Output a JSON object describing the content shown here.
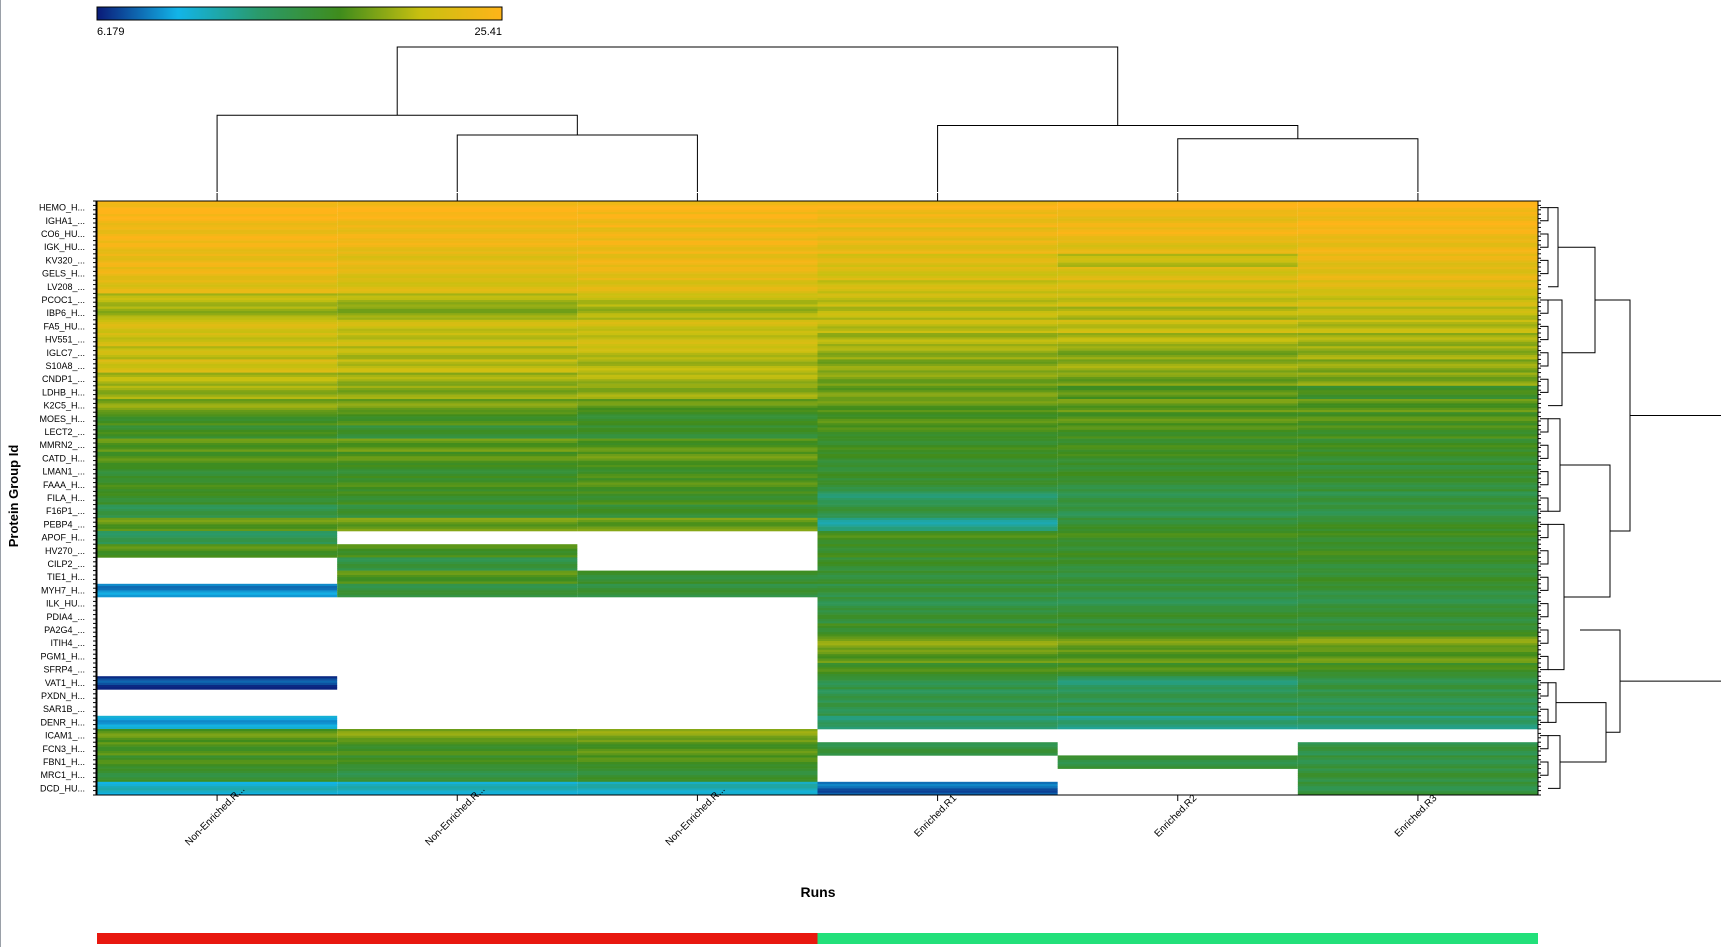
{
  "chart_data": {
    "type": "heatmap",
    "title": "",
    "xlabel": "Runs",
    "ylabel": "Protein Group Id",
    "color_scale": {
      "min": 6.179,
      "max": 25.41,
      "min_label": "6.179",
      "max_label": "25.41",
      "stops": [
        "#0a1a78",
        "#12b4e8",
        "#2a9a6a",
        "#3f8c1c",
        "#c9c010",
        "#ffb419"
      ]
    },
    "columns": [
      "Non-Enriched.R...",
      "Non-Enriched.R...",
      "Non-Enriched.R...",
      "Enriched.R1",
      "Enriched.R2",
      "Enriched.R3"
    ],
    "column_groups": [
      {
        "name": "Non-Enriched",
        "color": "#e8180f",
        "columns": [
          0,
          1,
          2
        ]
      },
      {
        "name": "Enriched",
        "color": "#22e07a",
        "columns": [
          3,
          4,
          5
        ]
      }
    ],
    "row_labels": [
      "HEMO_H...",
      "IGHA1_...",
      "CO6_HU...",
      "IGK_HU...",
      "KV320_...",
      "GELS_H...",
      "LV208_...",
      "PCOC1_...",
      "IBP6_H...",
      "FA5_HU...",
      "HV551_...",
      "IGLC7_...",
      "S10A8_...",
      "CNDP1_...",
      "LDHB_H...",
      "K2C5_H...",
      "MOES_H...",
      "LECT2_...",
      "MMRN2_...",
      "CATD_H...",
      "LMAN1_...",
      "FAAA_H...",
      "FILA_H...",
      "F16P1_...",
      "PEBP4_...",
      "APOF_H...",
      "HV270_...",
      "CILP2_...",
      "TIE1_H...",
      "MYH7_H...",
      "ILK_HU...",
      "PDIA4_...",
      "PA2G4_...",
      "ITIH4_...",
      "PGM1_H...",
      "SFRP4_...",
      "VAT1_H...",
      "PXDN_H...",
      "SAR1B_...",
      "DENR_H...",
      "ICAM1_...",
      "FCN3_H...",
      "FBN1_H...",
      "MRC1_H...",
      "DCD_HU..."
    ],
    "values": [
      [
        25.0,
        25.0,
        24.8,
        24.6,
        24.9,
        25.1
      ],
      [
        24.6,
        24.5,
        24.7,
        24.2,
        24.0,
        24.6
      ],
      [
        24.4,
        24.2,
        24.1,
        23.9,
        24.3,
        24.4
      ],
      [
        24.2,
        24.0,
        24.3,
        23.6,
        23.2,
        24.0
      ],
      [
        24.0,
        23.4,
        23.9,
        22.8,
        21.4,
        23.6
      ],
      [
        23.8,
        23.0,
        23.6,
        22.4,
        22.6,
        23.4
      ],
      [
        23.2,
        22.6,
        23.0,
        22.0,
        22.2,
        22.8
      ],
      [
        21.0,
        20.6,
        21.2,
        21.6,
        21.8,
        22.0
      ],
      [
        20.4,
        19.8,
        20.6,
        21.2,
        21.0,
        21.4
      ],
      [
        22.4,
        21.8,
        22.0,
        21.4,
        21.6,
        21.2
      ],
      [
        22.0,
        21.6,
        21.8,
        20.6,
        20.8,
        20.4
      ],
      [
        21.6,
        21.0,
        21.4,
        20.2,
        19.6,
        20.2
      ],
      [
        22.2,
        21.4,
        20.8,
        19.6,
        20.0,
        19.8
      ],
      [
        20.8,
        20.2,
        20.6,
        19.4,
        19.2,
        19.6
      ],
      [
        20.2,
        19.8,
        20.0,
        19.0,
        18.2,
        17.4
      ],
      [
        19.6,
        19.2,
        18.6,
        18.6,
        18.8,
        18.4
      ],
      [
        17.6,
        17.8,
        17.0,
        18.0,
        18.2,
        18.0
      ],
      [
        17.2,
        16.6,
        16.8,
        17.6,
        17.8,
        17.6
      ],
      [
        18.4,
        18.6,
        18.2,
        17.2,
        17.4,
        17.2
      ],
      [
        18.0,
        18.2,
        18.6,
        17.0,
        17.2,
        17.0
      ],
      [
        16.8,
        17.0,
        17.6,
        16.8,
        17.0,
        16.6
      ],
      [
        17.4,
        17.6,
        18.0,
        16.4,
        16.2,
        16.4
      ],
      [
        17.0,
        17.2,
        17.4,
        14.2,
        15.6,
        15.8
      ],
      [
        15.4,
        16.4,
        16.8,
        15.8,
        15.4,
        15.6
      ],
      [
        18.6,
        19.0,
        18.8,
        12.6,
        16.6,
        17.0
      ],
      [
        14.8,
        null,
        null,
        17.6,
        17.4,
        17.2
      ],
      [
        18.0,
        17.8,
        null,
        17.2,
        17.0,
        17.4
      ],
      [
        null,
        15.8,
        null,
        16.8,
        16.6,
        16.6
      ],
      [
        null,
        18.2,
        16.6,
        16.4,
        16.2,
        16.8
      ],
      [
        9.0,
        16.0,
        16.2,
        16.0,
        15.8,
        16.2
      ],
      [
        null,
        null,
        null,
        15.6,
        15.4,
        15.8
      ],
      [
        null,
        null,
        null,
        16.4,
        16.6,
        16.4
      ],
      [
        null,
        null,
        null,
        17.2,
        16.8,
        17.0
      ],
      [
        null,
        null,
        null,
        19.6,
        19.0,
        19.4
      ],
      [
        null,
        null,
        null,
        18.6,
        18.4,
        18.6
      ],
      [
        null,
        null,
        null,
        17.6,
        17.8,
        17.4
      ],
      [
        7.2,
        null,
        null,
        15.6,
        14.0,
        15.8
      ],
      [
        null,
        null,
        null,
        15.2,
        15.0,
        15.4
      ],
      [
        null,
        null,
        null,
        15.4,
        15.6,
        15.2
      ],
      [
        9.8,
        null,
        null,
        14.0,
        13.4,
        13.8
      ],
      [
        18.6,
        19.4,
        19.6,
        null,
        null,
        null
      ],
      [
        18.0,
        17.6,
        18.2,
        15.8,
        null,
        15.6
      ],
      [
        17.6,
        17.2,
        17.8,
        null,
        16.0,
        15.8
      ],
      [
        16.4,
        15.8,
        16.6,
        null,
        null,
        16.2
      ],
      [
        11.0,
        11.2,
        11.4,
        8.0,
        null,
        15.8
      ]
    ],
    "column_dendrogram": {
      "leaf_order": [
        0,
        1,
        2,
        3,
        4,
        5
      ],
      "merges": [
        {
          "left": 1,
          "right": 2,
          "height": 0.5
        },
        {
          "left": 4,
          "right": 5,
          "height": 0.45
        },
        {
          "left": 0,
          "right": 6,
          "height": 0.85
        },
        {
          "left": 3,
          "right": 7,
          "height": 0.65
        },
        {
          "left": 8,
          "right": 9,
          "height": 4.2
        }
      ]
    }
  }
}
